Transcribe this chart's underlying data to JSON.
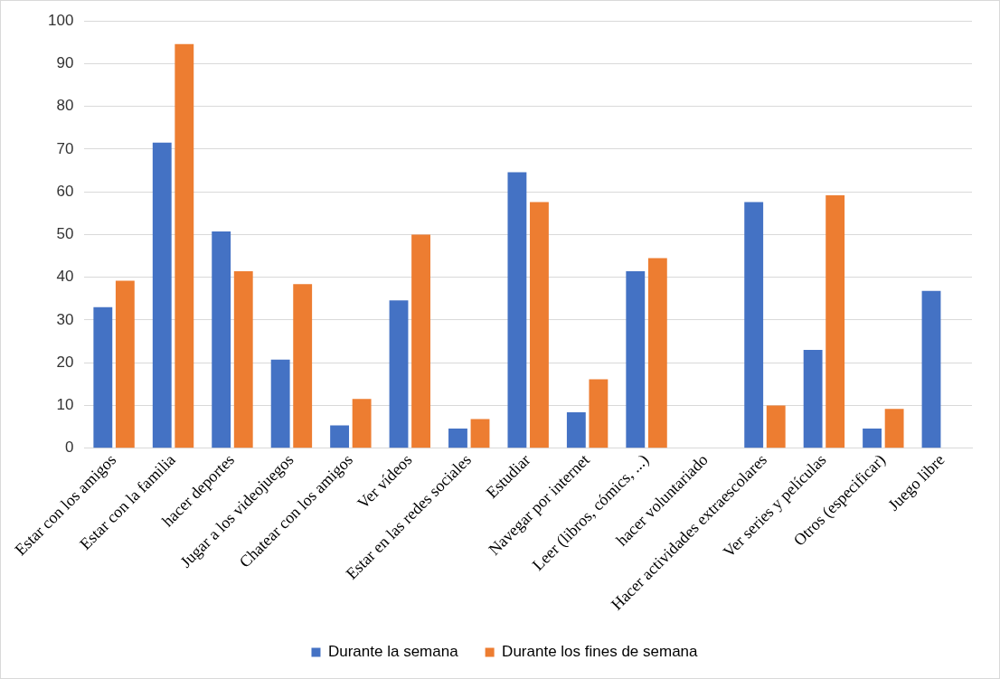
{
  "chart_data": {
    "type": "bar",
    "categories": [
      "Estar con los amigos",
      "Estar con la familia",
      "hacer deportes",
      "Jugar a los videojuegos",
      "Chatear con los amigos",
      "Ver vídeos",
      "Estar en las redes sociales",
      "Estudiar",
      "Navegar por internet",
      "Leer (libros, cómics, ...)",
      "hacer voluntariado",
      "Hacer actividades extraescolares",
      "Ver series y películas",
      "Otros (especificar)",
      "Juego libre"
    ],
    "series": [
      {
        "name": "Durante la semana",
        "color": "#4472c4",
        "values": [
          33,
          71.5,
          50.7,
          20.7,
          5.3,
          34.6,
          4.6,
          64.6,
          8.4,
          41.4,
          null,
          57.6,
          23,
          4.6,
          36.8
        ]
      },
      {
        "name": "Durante los fines de semana",
        "color": "#ed7d31",
        "values": [
          39.2,
          94.6,
          41.4,
          38.4,
          11.5,
          50,
          6.8,
          57.6,
          16.1,
          44.5,
          null,
          10,
          59.2,
          9.2,
          null
        ]
      }
    ],
    "ylim": [
      0,
      100
    ],
    "yticks": [
      0,
      10,
      20,
      30,
      40,
      50,
      60,
      70,
      80,
      90,
      100
    ],
    "grid": "y",
    "legend": "bottom"
  }
}
